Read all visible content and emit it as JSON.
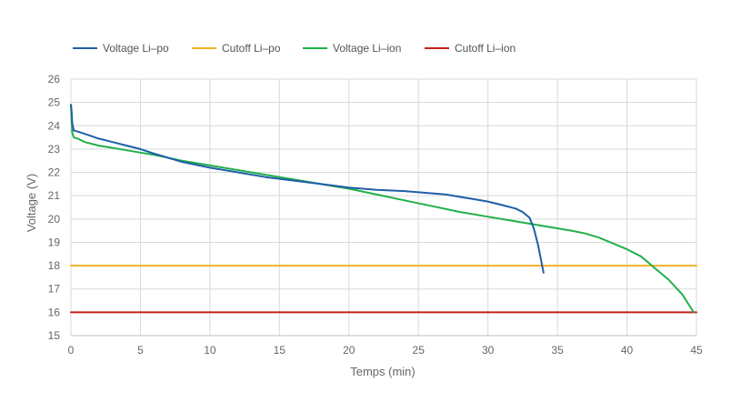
{
  "chart_data": {
    "type": "line",
    "xlabel": "Temps (min)",
    "ylabel": "Voltage (V)",
    "xlim": [
      0,
      45
    ],
    "ylim": [
      15,
      26
    ],
    "x_ticks": [
      0,
      5,
      10,
      15,
      20,
      25,
      30,
      35,
      40,
      45
    ],
    "y_ticks": [
      15,
      16,
      17,
      18,
      19,
      20,
      21,
      22,
      23,
      24,
      25,
      26
    ],
    "grid": true,
    "legend_position": "top-left",
    "series": [
      {
        "name": "Voltage Li–po",
        "color": "#1f5fa8",
        "x": [
          0,
          0.05,
          0.1,
          0.2,
          0.5,
          1,
          2,
          3,
          4,
          5,
          6,
          8,
          10,
          12,
          14,
          16,
          18,
          20,
          22,
          24,
          26,
          27,
          28,
          29,
          30,
          31,
          32,
          32.5,
          33,
          33.3,
          33.6,
          33.8,
          34
        ],
        "y": [
          24.9,
          24.6,
          24.1,
          23.8,
          23.75,
          23.65,
          23.45,
          23.3,
          23.15,
          23.0,
          22.8,
          22.45,
          22.2,
          22.0,
          21.8,
          21.65,
          21.5,
          21.35,
          21.25,
          21.2,
          21.1,
          21.05,
          20.95,
          20.85,
          20.75,
          20.6,
          20.45,
          20.3,
          20.05,
          19.6,
          18.9,
          18.3,
          17.7
        ]
      },
      {
        "name": "Cutoff Li–po",
        "color": "#f5b027",
        "x": [
          0,
          45
        ],
        "y": [
          18,
          18
        ]
      },
      {
        "name": "Voltage Li–ion",
        "color": "#20b04b",
        "x": [
          0,
          0.05,
          0.1,
          0.2,
          0.5,
          1,
          2,
          3,
          4,
          5,
          6,
          8,
          10,
          12,
          14,
          16,
          18,
          20,
          22,
          24,
          26,
          28,
          30,
          32,
          34,
          36,
          37,
          38,
          39,
          40,
          41,
          41.5,
          42,
          43,
          44,
          44.8
        ],
        "y": [
          24.9,
          24.2,
          23.7,
          23.5,
          23.45,
          23.3,
          23.15,
          23.05,
          22.95,
          22.85,
          22.75,
          22.5,
          22.3,
          22.1,
          21.9,
          21.7,
          21.5,
          21.3,
          21.05,
          20.8,
          20.55,
          20.3,
          20.1,
          19.9,
          19.7,
          19.5,
          19.38,
          19.2,
          18.95,
          18.7,
          18.4,
          18.15,
          17.9,
          17.4,
          16.75,
          16.0
        ]
      },
      {
        "name": "Cutoff Li–ion",
        "color": "#c4201c",
        "x": [
          0,
          45
        ],
        "y": [
          16,
          16
        ]
      }
    ]
  }
}
